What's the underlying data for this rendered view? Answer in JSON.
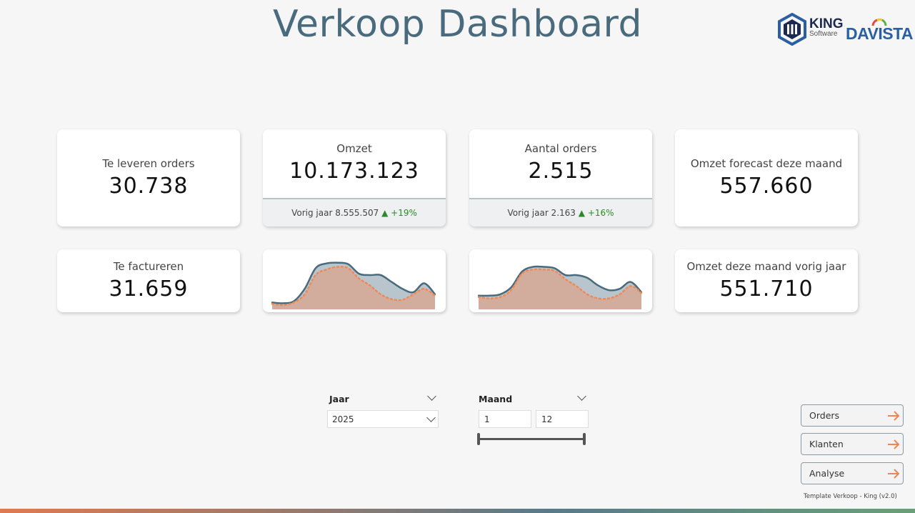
{
  "header": {
    "title": "Verkoop Dashboard",
    "logo_king": "KING",
    "logo_king_sub": "Software",
    "logo_davista": "DAVISTA"
  },
  "kpis": {
    "te_leveren": {
      "label": "Te leveren orders",
      "value": "30.738"
    },
    "omzet": {
      "label": "Omzet",
      "value": "10.173.123",
      "prev_label": "Vorig jaar 8.555.507",
      "change": "+19%"
    },
    "orders": {
      "label": "Aantal orders",
      "value": "2.515",
      "prev_label": "Vorig jaar 2.163",
      "change": "+16%"
    },
    "forecast": {
      "label": "Omzet forecast deze maand",
      "value": "557.660"
    },
    "te_factureren": {
      "label": "Te factureren",
      "value": "31.659"
    },
    "omzet_vorig": {
      "label": "Omzet deze maand vorig jaar",
      "value": "551.710"
    }
  },
  "charts": {
    "omzet_spark": {
      "type": "area",
      "series": [
        {
          "values": [
            10,
            9,
            12,
            30,
            60,
            67,
            68,
            66,
            52,
            50,
            50,
            40,
            30,
            25,
            38,
            22
          ]
        },
        {
          "values": [
            8,
            6,
            10,
            22,
            50,
            58,
            62,
            60,
            45,
            35,
            22,
            15,
            14,
            22,
            30,
            20
          ]
        }
      ]
    },
    "orders_spark": {
      "type": "area",
      "series": [
        {
          "values": [
            20,
            20,
            22,
            32,
            55,
            62,
            62,
            60,
            50,
            50,
            46,
            35,
            28,
            30,
            40,
            25
          ]
        },
        {
          "values": [
            18,
            16,
            18,
            28,
            52,
            58,
            58,
            56,
            44,
            34,
            22,
            16,
            16,
            22,
            34,
            24
          ]
        }
      ]
    }
  },
  "filters": {
    "year": {
      "label": "Jaar",
      "value": "2025"
    },
    "month": {
      "label": "Maand",
      "from": "1",
      "to": "12"
    }
  },
  "nav": {
    "orders": "Orders",
    "klanten": "Klanten",
    "analyse": "Analyse"
  },
  "footer": {
    "note": "Template Verkoop - King (v2.0)"
  },
  "colors": {
    "title": "#4a6b7e",
    "line_current": "#4a6b7e",
    "fill_current": "#b9c5cc",
    "line_previous": "#ee8a55",
    "fill_previous": "#d3ab9a",
    "arrow": "#e9875a",
    "positive": "#2a8a2a"
  }
}
